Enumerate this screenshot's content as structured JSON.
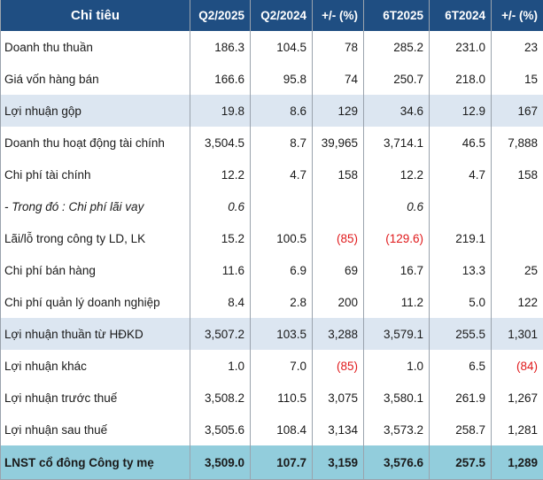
{
  "table": {
    "headers": [
      "Chỉ tiêu",
      "Q2/2025",
      "Q2/2024",
      "+/- (%)",
      "6T2025",
      "6T2024",
      "+/- (%)"
    ],
    "rows": [
      {
        "cells": [
          "Doanh thu thuần",
          "186.3",
          "104.5",
          "78",
          "285.2",
          "231.0",
          "23"
        ],
        "style": "normal",
        "neg": []
      },
      {
        "cells": [
          "Giá vốn hàng bán",
          "166.6",
          "95.8",
          "74",
          "250.7",
          "218.0",
          "15"
        ],
        "style": "normal",
        "neg": []
      },
      {
        "cells": [
          "Lợi nhuận gộp",
          "19.8",
          "8.6",
          "129",
          "34.6",
          "12.9",
          "167"
        ],
        "style": "shaded",
        "neg": []
      },
      {
        "cells": [
          "Doanh thu hoạt động tài chính",
          "3,504.5",
          "8.7",
          "39,965",
          "3,714.1",
          "46.5",
          "7,888"
        ],
        "style": "normal",
        "neg": []
      },
      {
        "cells": [
          "Chi phí tài chính",
          "12.2",
          "4.7",
          "158",
          "12.2",
          "4.7",
          "158"
        ],
        "style": "normal",
        "neg": []
      },
      {
        "cells": [
          "- Trong đó : Chi phí lãi vay",
          "0.6",
          "",
          "",
          "0.6",
          "",
          ""
        ],
        "style": "italic",
        "neg": []
      },
      {
        "cells": [
          "Lãi/lỗ trong công ty LD, LK",
          "15.2",
          "100.5",
          "(85)",
          "(129.6)",
          "219.1",
          ""
        ],
        "style": "normal",
        "neg": [
          3,
          4
        ]
      },
      {
        "cells": [
          "Chi phí bán hàng",
          "11.6",
          "6.9",
          "69",
          "16.7",
          "13.3",
          "25"
        ],
        "style": "normal",
        "neg": []
      },
      {
        "cells": [
          "Chi phí quản lý doanh nghiệp",
          "8.4",
          "2.8",
          "200",
          "11.2",
          "5.0",
          "122"
        ],
        "style": "normal",
        "neg": []
      },
      {
        "cells": [
          "Lợi nhuận thuần từ HĐKD",
          "3,507.2",
          "103.5",
          "3,288",
          "3,579.1",
          "255.5",
          "1,301"
        ],
        "style": "shaded",
        "neg": []
      },
      {
        "cells": [
          "Lợi nhuận khác",
          "1.0",
          "7.0",
          "(85)",
          "1.0",
          "6.5",
          "(84)"
        ],
        "style": "normal",
        "neg": [
          3,
          6
        ]
      },
      {
        "cells": [
          "Lợi nhuận trước thuế",
          "3,508.2",
          "110.5",
          "3,075",
          "3,580.1",
          "261.9",
          "1,267"
        ],
        "style": "normal",
        "neg": []
      },
      {
        "cells": [
          "Lợi nhuận sau thuế",
          "3,505.6",
          "108.4",
          "3,134",
          "3,573.2",
          "258.7",
          "1,281"
        ],
        "style": "normal",
        "neg": []
      },
      {
        "cells": [
          "LNST cổ đông Công ty mẹ",
          "3,509.0",
          "107.7",
          "3,159",
          "3,576.6",
          "257.5",
          "1,289"
        ],
        "style": "total",
        "neg": []
      }
    ]
  },
  "colors": {
    "header_bg": "#1f4e82",
    "shaded_row_bg": "#dce6f1",
    "total_row_bg": "#92cddc",
    "negative_text": "#e0191b"
  }
}
